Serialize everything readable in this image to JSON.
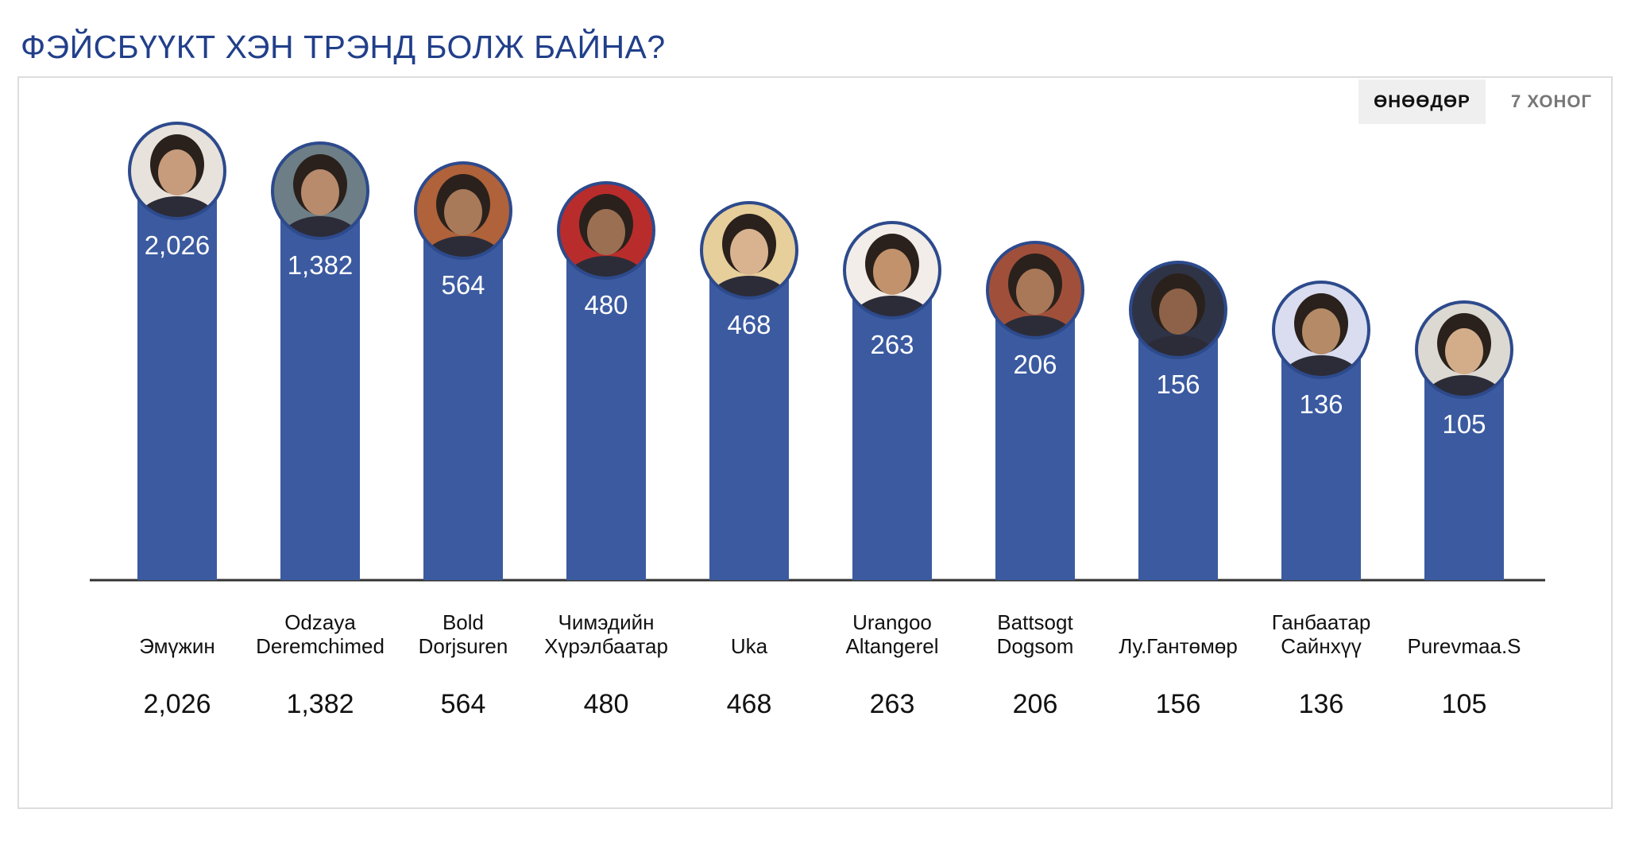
{
  "title": "ФЭЙСБҮҮКТ ХЭН ТРЭНД БОЛЖ БАЙНА?",
  "tabs": [
    {
      "label": "ӨНӨӨДӨР",
      "active": true
    },
    {
      "label": "7 ХОНОГ",
      "active": false
    }
  ],
  "colors": {
    "bar": "#3b5aa0",
    "title": "#213f8a",
    "axis": "#333333"
  },
  "chart_data": {
    "type": "bar",
    "title": "",
    "xlabel": "",
    "ylabel": "",
    "categories": [
      [
        "Эмүжин"
      ],
      [
        "Odzaya",
        "Deremchimed"
      ],
      [
        "Bold",
        "Dorjsuren"
      ],
      [
        "Чимэдийн",
        "Хүрэлбаатар"
      ],
      [
        "Uka"
      ],
      [
        "Urangoo",
        "Altangerel"
      ],
      [
        "Battsogt",
        "Dogsom"
      ],
      [
        "Лу.Гантөмөр"
      ],
      [
        "Ганбаатар",
        "Сайнхүү"
      ],
      [
        "Purevmaa.S"
      ]
    ],
    "values": [
      2026,
      1382,
      564,
      480,
      468,
      263,
      206,
      156,
      136,
      105
    ],
    "value_labels": [
      "2,026",
      "1,382",
      "564",
      "480",
      "468",
      "263",
      "206",
      "156",
      "136",
      "105"
    ],
    "avatars": [
      "avatar-icon",
      "avatar-icon",
      "avatar-icon",
      "avatar-icon",
      "avatar-icon",
      "avatar-icon",
      "avatar-icon",
      "avatar-icon",
      "avatar-icon",
      "avatar-icon"
    ],
    "legend": "none",
    "grid": false
  }
}
